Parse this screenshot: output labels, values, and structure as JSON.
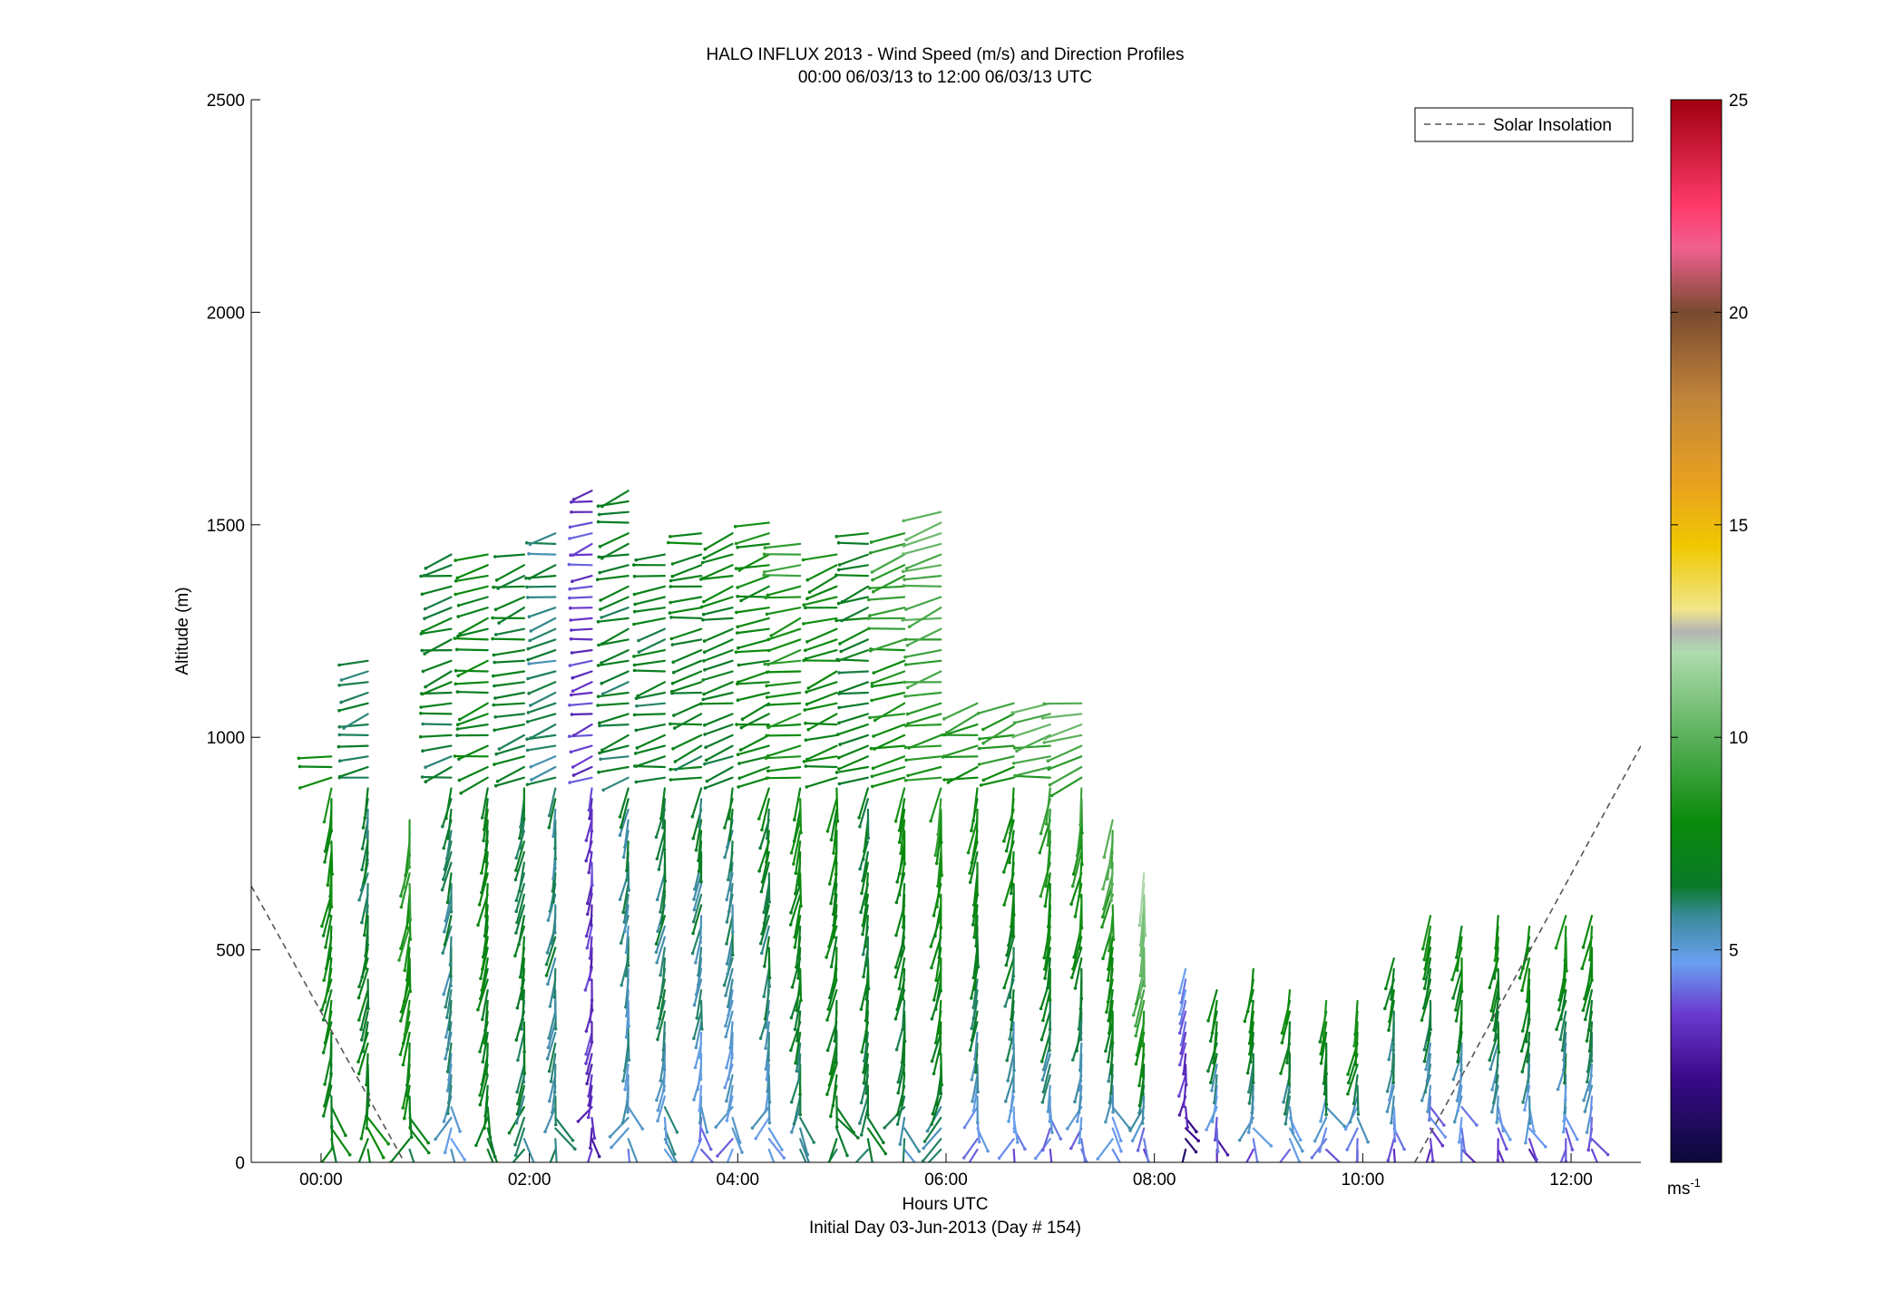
{
  "chart_data": {
    "type": "vector-profile",
    "title": "HALO INFLUX 2013 - Wind Speed (m/s) and Direction Profiles",
    "subtitle": "00:00 06/03/13 to 12:00 06/03/13  UTC",
    "xlabel": "Hours UTC",
    "xlabel2": "Initial Day 03-Jun-2013 (Day # 154)",
    "ylabel": "Altitude (m)",
    "xlim_hours": [
      -0.67,
      12.67
    ],
    "ylim": [
      0,
      2500
    ],
    "x_ticks": [
      {
        "hour": 0,
        "label": "00:00"
      },
      {
        "hour": 2,
        "label": "02:00"
      },
      {
        "hour": 4,
        "label": "04:00"
      },
      {
        "hour": 6,
        "label": "06:00"
      },
      {
        "hour": 8,
        "label": "08:00"
      },
      {
        "hour": 10,
        "label": "10:00"
      },
      {
        "hour": 12,
        "label": "12:00"
      }
    ],
    "y_ticks": [
      0,
      500,
      1000,
      1500,
      2000,
      2500
    ],
    "legend": {
      "label": "Solar Insolation",
      "position": "top-right",
      "style": "dashed"
    },
    "colorbar": {
      "min": 0,
      "max": 25,
      "ticks": [
        5,
        10,
        15,
        20,
        25
      ],
      "unit_base": "ms",
      "unit_exp": "-1",
      "stops": [
        {
          "v": 0,
          "color": "#0a0a38"
        },
        {
          "v": 2,
          "color": "#3a0a8a"
        },
        {
          "v": 3.5,
          "color": "#6a3ad0"
        },
        {
          "v": 4.7,
          "color": "#6aa0f0"
        },
        {
          "v": 5.8,
          "color": "#3a8a9a"
        },
        {
          "v": 6.5,
          "color": "#0a7a2a"
        },
        {
          "v": 8,
          "color": "#0a8a0a"
        },
        {
          "v": 10,
          "color": "#5ab05a"
        },
        {
          "v": 12,
          "color": "#aedcae"
        },
        {
          "v": 12.5,
          "color": "#b4b4b4"
        },
        {
          "v": 13,
          "color": "#f0e68a"
        },
        {
          "v": 14.5,
          "color": "#f0c800"
        },
        {
          "v": 16,
          "color": "#e8a020"
        },
        {
          "v": 18,
          "color": "#c0843a"
        },
        {
          "v": 20,
          "color": "#7a4a30"
        },
        {
          "v": 21.5,
          "color": "#f06090"
        },
        {
          "v": 22.5,
          "color": "#ff3a6a"
        },
        {
          "v": 25,
          "color": "#a00010"
        }
      ]
    },
    "solar_insolation": {
      "segments": [
        [
          [
            -0.67,
            650
          ],
          [
            0.8,
            0
          ]
        ],
        [
          [
            10.5,
            0
          ],
          [
            12.67,
            980
          ]
        ]
      ]
    },
    "profiles": [
      {
        "time": 0.1,
        "top": 960,
        "speed_top": 8,
        "speed_bottom": 7
      },
      {
        "time": 0.45,
        "top": 1200,
        "speed_top": 6,
        "speed_bottom": 8
      },
      {
        "time": 0.85,
        "top": 820,
        "speed_top": 9,
        "speed_bottom": 6.5
      },
      {
        "time": 1.25,
        "top": 1450,
        "speed_top": 7,
        "speed_bottom": 5
      },
      {
        "time": 1.6,
        "top": 1450,
        "speed_top": 7.5,
        "speed_bottom": 7
      },
      {
        "time": 1.95,
        "top": 1450,
        "speed_top": 7,
        "speed_bottom": 6
      },
      {
        "time": 2.25,
        "top": 1500,
        "speed_top": 6,
        "speed_bottom": 6
      },
      {
        "time": 2.6,
        "top": 1580,
        "speed_top": 3.5,
        "speed_bottom": 3
      },
      {
        "time": 2.95,
        "top": 1600,
        "speed_top": 7,
        "speed_bottom": 4.5
      },
      {
        "time": 3.3,
        "top": 1450,
        "speed_top": 7,
        "speed_bottom": 5
      },
      {
        "time": 3.65,
        "top": 1500,
        "speed_top": 7.5,
        "speed_bottom": 4
      },
      {
        "time": 3.95,
        "top": 1500,
        "speed_top": 7.5,
        "speed_bottom": 4
      },
      {
        "time": 4.3,
        "top": 1520,
        "speed_top": 8,
        "speed_bottom": 4.5
      },
      {
        "time": 4.6,
        "top": 1460,
        "speed_top": 9,
        "speed_bottom": 5
      },
      {
        "time": 4.95,
        "top": 1450,
        "speed_top": 8,
        "speed_bottom": 6.5
      },
      {
        "time": 5.25,
        "top": 1480,
        "speed_top": 7,
        "speed_bottom": 6.5
      },
      {
        "time": 5.6,
        "top": 1500,
        "speed_top": 9,
        "speed_bottom": 5
      },
      {
        "time": 5.95,
        "top": 1530,
        "speed_top": 10,
        "speed_bottom": 5
      },
      {
        "time": 6.3,
        "top": 1100,
        "speed_top": 9,
        "speed_bottom": 3.5
      },
      {
        "time": 6.65,
        "top": 1100,
        "speed_top": 9,
        "speed_bottom": 3
      },
      {
        "time": 7.0,
        "top": 1100,
        "speed_top": 10,
        "speed_bottom": 3
      },
      {
        "time": 7.3,
        "top": 1100,
        "speed_top": 10,
        "speed_bottom": 3
      },
      {
        "time": 7.6,
        "top": 820,
        "speed_top": 10,
        "speed_bottom": 3
      },
      {
        "time": 7.9,
        "top": 700,
        "speed_top": 12,
        "speed_bottom": 1.5
      },
      {
        "time": 8.3,
        "top": 470,
        "speed_top": 4.5,
        "speed_bottom": 1
      },
      {
        "time": 8.6,
        "top": 420,
        "speed_top": 8,
        "speed_bottom": 1
      },
      {
        "time": 8.95,
        "top": 460,
        "speed_top": 8,
        "speed_bottom": 3
      },
      {
        "time": 9.3,
        "top": 420,
        "speed_top": 8,
        "speed_bottom": 3
      },
      {
        "time": 9.65,
        "top": 380,
        "speed_top": 8,
        "speed_bottom": 2
      },
      {
        "time": 9.95,
        "top": 400,
        "speed_top": 9,
        "speed_bottom": 1.5
      },
      {
        "time": 10.3,
        "top": 500,
        "speed_top": 7.5,
        "speed_bottom": 2.5
      },
      {
        "time": 10.65,
        "top": 580,
        "speed_top": 8,
        "speed_bottom": 2
      },
      {
        "time": 10.95,
        "top": 570,
        "speed_top": 8,
        "speed_bottom": 2.5
      },
      {
        "time": 11.3,
        "top": 580,
        "speed_top": 8,
        "speed_bottom": 2.5
      },
      {
        "time": 11.6,
        "top": 570,
        "speed_top": 8,
        "speed_bottom": 2.5
      },
      {
        "time": 11.95,
        "top": 580,
        "speed_top": 8,
        "speed_bottom": 2.5
      },
      {
        "time": 12.2,
        "top": 600,
        "speed_top": 8,
        "speed_bottom": 2.5
      }
    ]
  }
}
